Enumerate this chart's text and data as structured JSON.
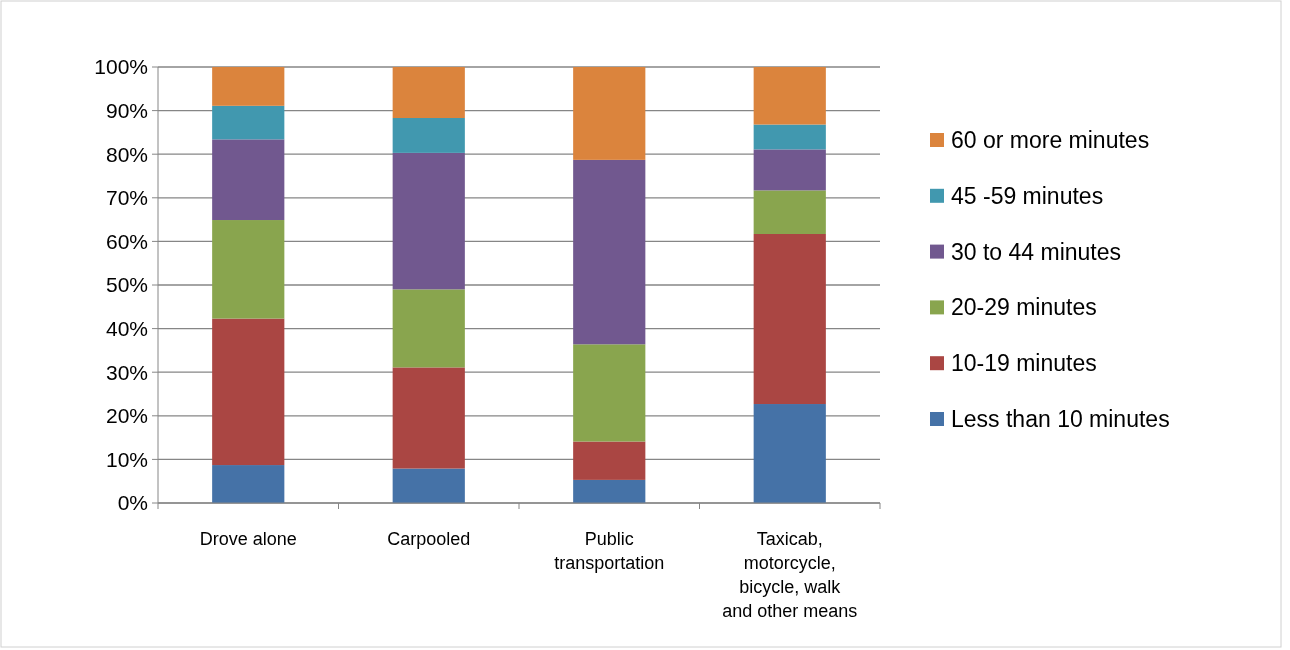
{
  "chart_data": {
    "type": "bar",
    "stacked": true,
    "categories": [
      "Drove alone",
      "Carpooled",
      "Public transportation",
      "Taxicab, motorcycle, bicycle, walk and other means"
    ],
    "series": [
      {
        "name": "Less than 10 minutes",
        "color": "#4572a7",
        "values": [
          8.7,
          7.9,
          5.3,
          22.7
        ]
      },
      {
        "name": "10-19 minutes",
        "color": "#aa4643",
        "values": [
          33.6,
          23.2,
          8.8,
          39.0
        ]
      },
      {
        "name": "20-29 minutes",
        "color": "#89a54e",
        "values": [
          22.6,
          17.9,
          22.3,
          10.0
        ]
      },
      {
        "name": "30 to 44 minutes",
        "color": "#71588f",
        "values": [
          18.5,
          31.3,
          42.3,
          9.4
        ]
      },
      {
        "name": "45 -59 minutes",
        "color": "#4198af",
        "values": [
          7.7,
          8.0,
          0,
          5.7
        ]
      },
      {
        "name": "60 or more minutes",
        "color": "#db843d",
        "values": [
          8.9,
          11.7,
          21.3,
          13.2
        ]
      }
    ],
    "ylim": [
      0,
      100
    ],
    "yticks": [
      {
        "value": 0,
        "label": "0%"
      },
      {
        "value": 10,
        "label": "10%"
      },
      {
        "value": 20,
        "label": "20%"
      },
      {
        "value": 30,
        "label": "30%"
      },
      {
        "value": 40,
        "label": "40%"
      },
      {
        "value": 50,
        "label": "50%"
      },
      {
        "value": 60,
        "label": "60%"
      },
      {
        "value": 70,
        "label": "70%"
      },
      {
        "value": 80,
        "label": "80%"
      },
      {
        "value": 90,
        "label": "90%"
      },
      {
        "value": 100,
        "label": "100%"
      }
    ],
    "grid": "y",
    "legend": "right"
  }
}
